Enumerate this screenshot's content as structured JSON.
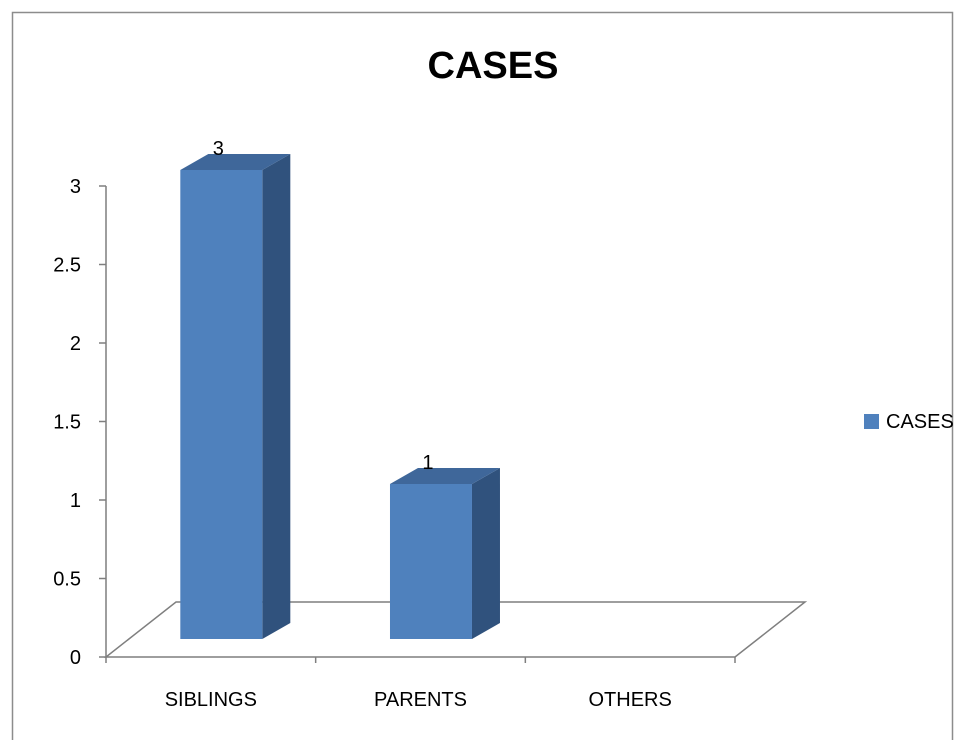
{
  "chart_data": {
    "type": "bar",
    "title": "CASES",
    "categories": [
      "SIBLINGS",
      "PARENTS",
      "OTHERS"
    ],
    "series": [
      {
        "name": "CASES",
        "values": [
          3,
          1,
          0
        ],
        "data_labels": [
          "3",
          "1",
          ""
        ]
      }
    ],
    "ylim": [
      0,
      3
    ],
    "yticks": [
      "0",
      "0.5",
      "1",
      "1.5",
      "2",
      "2.5",
      "3"
    ],
    "xlabel": "",
    "ylabel": "",
    "legend": {
      "position": "right",
      "entries": [
        "CASES"
      ]
    },
    "grid": false,
    "three_d": true,
    "colors": {
      "bar_front": "#4F81BD",
      "bar_side": "#30527D",
      "bar_top": "#3F679A",
      "floor_line": "#7F7F7F",
      "axis": "#7F7F7F",
      "frame": "#7F7F7F",
      "text": "#000000"
    }
  }
}
